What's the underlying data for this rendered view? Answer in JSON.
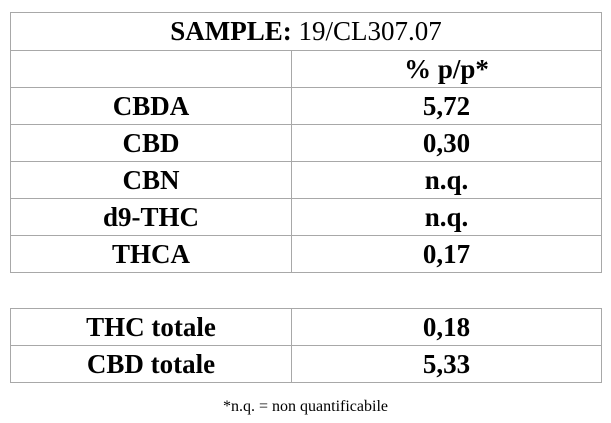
{
  "sample": {
    "label": "SAMPLE:",
    "id": "19/CL307.07"
  },
  "unit_header": "% p/p*",
  "rows": [
    {
      "compound": "CBDA",
      "value": "5,72"
    },
    {
      "compound": "CBD",
      "value": "0,30"
    },
    {
      "compound": "CBN",
      "value": "n.q."
    },
    {
      "compound": "d9-THC",
      "value": "n.q."
    },
    {
      "compound": "THCA",
      "value": "0,17"
    }
  ],
  "totals": [
    {
      "label": "THC totale",
      "value": "0,18"
    },
    {
      "label": "CBD totale",
      "value": "5,33"
    }
  ],
  "footnote": "*n.q. = non quantificabile"
}
